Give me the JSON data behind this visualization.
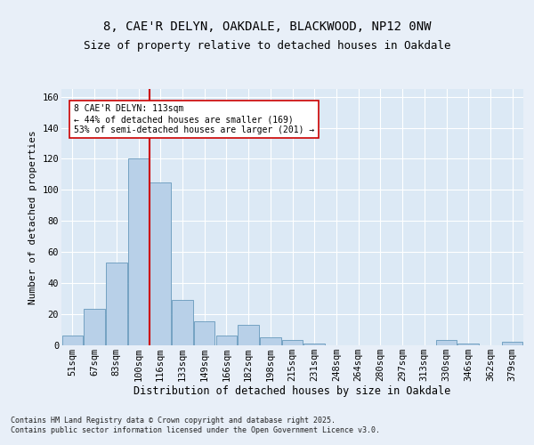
{
  "title1": "8, CAE'R DELYN, OAKDALE, BLACKWOOD, NP12 0NW",
  "title2": "Size of property relative to detached houses in Oakdale",
  "xlabel": "Distribution of detached houses by size in Oakdale",
  "ylabel": "Number of detached properties",
  "categories": [
    "51sqm",
    "67sqm",
    "83sqm",
    "100sqm",
    "116sqm",
    "133sqm",
    "149sqm",
    "166sqm",
    "182sqm",
    "198sqm",
    "215sqm",
    "231sqm",
    "248sqm",
    "264sqm",
    "280sqm",
    "297sqm",
    "313sqm",
    "330sqm",
    "346sqm",
    "362sqm",
    "379sqm"
  ],
  "values": [
    6,
    23,
    53,
    120,
    105,
    29,
    15,
    6,
    13,
    5,
    3,
    1,
    0,
    0,
    0,
    0,
    0,
    3,
    1,
    0,
    2
  ],
  "bar_color": "#b8d0e8",
  "bar_edge_color": "#6699bb",
  "vline_color": "#cc0000",
  "annotation_text": "8 CAE'R DELYN: 113sqm\n← 44% of detached houses are smaller (169)\n53% of semi-detached houses are larger (201) →",
  "annotation_box_color": "#ffffff",
  "annotation_box_edge": "#cc0000",
  "ylim": [
    0,
    165
  ],
  "yticks": [
    0,
    20,
    40,
    60,
    80,
    100,
    120,
    140,
    160
  ],
  "background_color": "#dce9f5",
  "plot_bg_color": "#dce9f5",
  "fig_bg_color": "#e8eff8",
  "grid_color": "#ffffff",
  "footer": "Contains HM Land Registry data © Crown copyright and database right 2025.\nContains public sector information licensed under the Open Government Licence v3.0.",
  "title1_fontsize": 10,
  "title2_fontsize": 9,
  "xlabel_fontsize": 8.5,
  "ylabel_fontsize": 8,
  "tick_fontsize": 7.5,
  "annotation_fontsize": 7,
  "footer_fontsize": 6
}
